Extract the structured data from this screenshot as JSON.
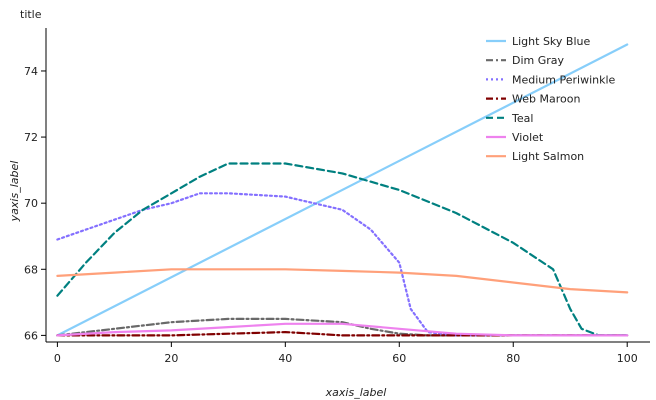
{
  "chart_data": {
    "type": "line",
    "title": "title",
    "xlabel": "xaxis_label",
    "ylabel": "yaxis_label",
    "xlim": [
      -2,
      104
    ],
    "ylim": [
      65.8,
      75.3
    ],
    "xticks": [
      "0",
      "20",
      "40",
      "60",
      "80",
      "100"
    ],
    "yticks": [
      "66",
      "68",
      "70",
      "72",
      "74"
    ],
    "grid": false,
    "legend_position": "top-right",
    "series": [
      {
        "name": "Light Sky Blue",
        "color": "#87cefa",
        "dash": "solid",
        "points": [
          [
            0,
            66.0
          ],
          [
            100,
            74.8
          ]
        ]
      },
      {
        "name": "Dim Gray",
        "color": "#696969",
        "dash": "dashdot",
        "points": [
          [
            0,
            66.0
          ],
          [
            5,
            66.1
          ],
          [
            10,
            66.2
          ],
          [
            15,
            66.3
          ],
          [
            20,
            66.4
          ],
          [
            30,
            66.5
          ],
          [
            40,
            66.5
          ],
          [
            50,
            66.4
          ],
          [
            55,
            66.2
          ],
          [
            60,
            66.05
          ],
          [
            65,
            66.0
          ],
          [
            100,
            66.0
          ]
        ]
      },
      {
        "name": "Medium Periwinkle",
        "color": "#8470ff",
        "dash": "dotted",
        "points": [
          [
            0,
            68.9
          ],
          [
            5,
            69.2
          ],
          [
            10,
            69.5
          ],
          [
            15,
            69.8
          ],
          [
            20,
            70.0
          ],
          [
            25,
            70.3
          ],
          [
            30,
            70.3
          ],
          [
            40,
            70.2
          ],
          [
            50,
            69.8
          ],
          [
            55,
            69.2
          ],
          [
            60,
            68.2
          ],
          [
            62,
            66.8
          ],
          [
            65,
            66.1
          ],
          [
            70,
            66.0
          ],
          [
            100,
            66.0
          ]
        ]
      },
      {
        "name": "Web Maroon",
        "color": "#800000",
        "dash": "dashdot",
        "points": [
          [
            0,
            66.0
          ],
          [
            20,
            66.0
          ],
          [
            30,
            66.05
          ],
          [
            40,
            66.1
          ],
          [
            45,
            66.05
          ],
          [
            50,
            66.0
          ],
          [
            100,
            66.0
          ]
        ]
      },
      {
        "name": "Teal",
        "color": "#008080",
        "dash": "dashed",
        "points": [
          [
            0,
            67.2
          ],
          [
            5,
            68.2
          ],
          [
            10,
            69.1
          ],
          [
            15,
            69.8
          ],
          [
            20,
            70.3
          ],
          [
            25,
            70.8
          ],
          [
            30,
            71.2
          ],
          [
            40,
            71.2
          ],
          [
            50,
            70.9
          ],
          [
            60,
            70.4
          ],
          [
            70,
            69.7
          ],
          [
            80,
            68.8
          ],
          [
            87,
            68.0
          ],
          [
            90,
            66.8
          ],
          [
            92,
            66.2
          ],
          [
            95,
            66.0
          ],
          [
            100,
            66.0
          ]
        ]
      },
      {
        "name": "Violet",
        "color": "#ee82ee",
        "dash": "solid",
        "points": [
          [
            0,
            66.0
          ],
          [
            10,
            66.1
          ],
          [
            20,
            66.15
          ],
          [
            30,
            66.25
          ],
          [
            40,
            66.35
          ],
          [
            50,
            66.35
          ],
          [
            60,
            66.2
          ],
          [
            70,
            66.05
          ],
          [
            80,
            66.0
          ],
          [
            100,
            66.0
          ]
        ]
      },
      {
        "name": "Light Salmon",
        "color": "#ffa07a",
        "dash": "solid",
        "points": [
          [
            0,
            67.8
          ],
          [
            10,
            67.9
          ],
          [
            20,
            68.0
          ],
          [
            30,
            68.0
          ],
          [
            40,
            68.0
          ],
          [
            50,
            67.95
          ],
          [
            60,
            67.9
          ],
          [
            70,
            67.8
          ],
          [
            80,
            67.6
          ],
          [
            90,
            67.4
          ],
          [
            100,
            67.3
          ]
        ]
      }
    ]
  }
}
